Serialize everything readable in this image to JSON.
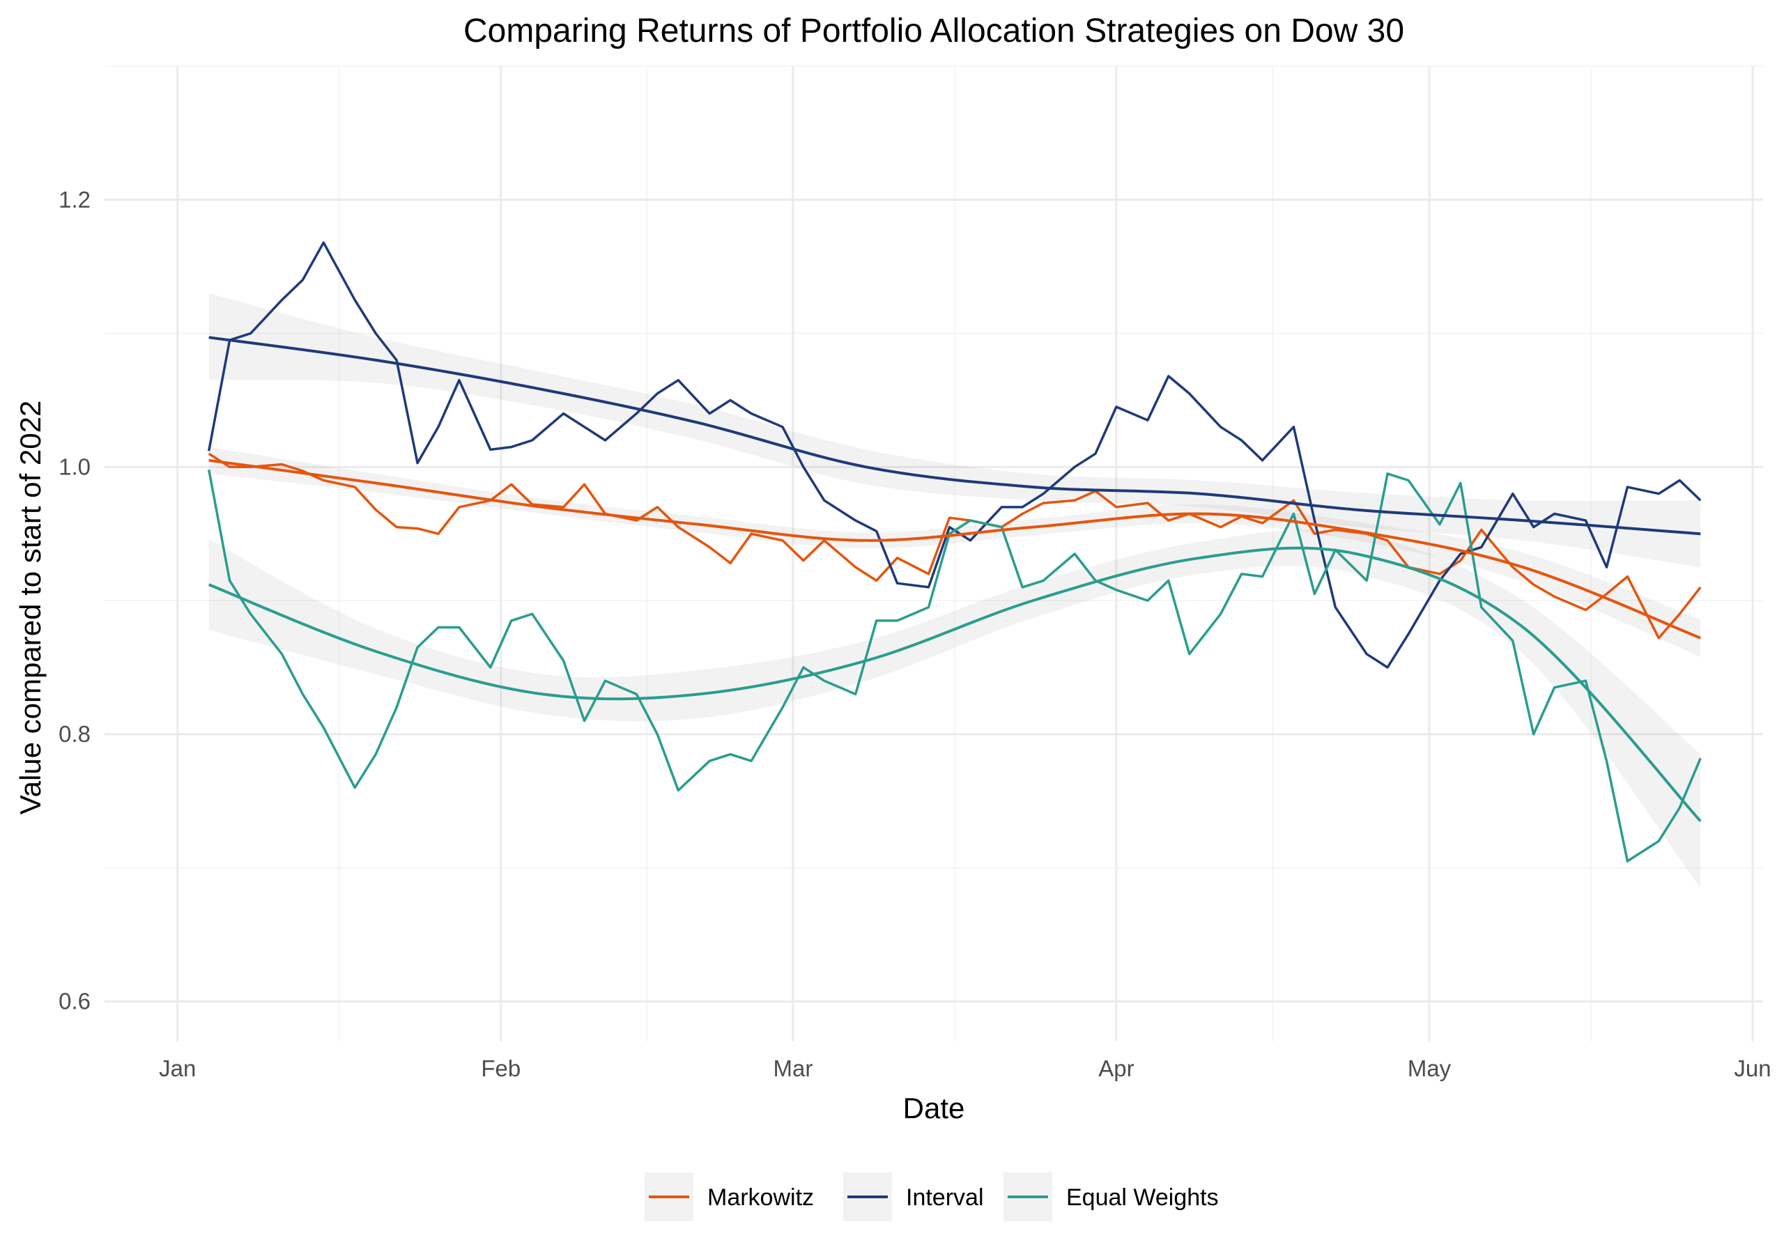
{
  "chart_data": {
    "type": "line",
    "title": "Comparing Returns of Portfolio Allocation Strategies on Dow 30",
    "xlabel": "Date",
    "ylabel": "Value compared to start of 2022",
    "x_axis_type": "date",
    "xlim": [
      "2021-12-25",
      "2022-06-02"
    ],
    "ylim": [
      0.57,
      1.3
    ],
    "x_ticks": [
      {
        "date": "2022-01-01",
        "label": "Jan"
      },
      {
        "date": "2022-02-01",
        "label": "Feb"
      },
      {
        "date": "2022-03-01",
        "label": "Mar"
      },
      {
        "date": "2022-04-01",
        "label": "Apr"
      },
      {
        "date": "2022-05-01",
        "label": "May"
      },
      {
        "date": "2022-06-01",
        "label": "Jun"
      }
    ],
    "y_ticks": [
      {
        "value": 0.6,
        "label": "0.6"
      },
      {
        "value": 0.8,
        "label": "0.8"
      },
      {
        "value": 1.0,
        "label": "1.0"
      },
      {
        "value": 1.2,
        "label": "1.2"
      }
    ],
    "grid": true,
    "legend_position": "bottom",
    "series": [
      {
        "name": "Markowitz",
        "color": "#E6550D",
        "x": [
          "2022-01-04",
          "2022-01-06",
          "2022-01-08",
          "2022-01-11",
          "2022-01-13",
          "2022-01-15",
          "2022-01-18",
          "2022-01-20",
          "2022-01-22",
          "2022-01-24",
          "2022-01-26",
          "2022-01-28",
          "2022-01-31",
          "2022-02-02",
          "2022-02-04",
          "2022-02-07",
          "2022-02-09",
          "2022-02-11",
          "2022-02-14",
          "2022-02-16",
          "2022-02-18",
          "2022-02-21",
          "2022-02-23",
          "2022-02-25",
          "2022-02-28",
          "2022-03-02",
          "2022-03-04",
          "2022-03-07",
          "2022-03-09",
          "2022-03-11",
          "2022-03-14",
          "2022-03-16",
          "2022-03-18",
          "2022-03-21",
          "2022-03-23",
          "2022-03-25",
          "2022-03-28",
          "2022-03-30",
          "2022-04-01",
          "2022-04-04",
          "2022-04-06",
          "2022-04-08",
          "2022-04-11",
          "2022-04-13",
          "2022-04-15",
          "2022-04-18",
          "2022-04-20",
          "2022-04-22",
          "2022-04-25",
          "2022-04-27",
          "2022-04-29",
          "2022-05-02",
          "2022-05-04",
          "2022-05-06",
          "2022-05-09",
          "2022-05-11",
          "2022-05-13",
          "2022-05-16",
          "2022-05-18",
          "2022-05-20",
          "2022-05-23",
          "2022-05-25",
          "2022-05-27"
        ],
        "values": [
          1.01,
          1.0,
          1.0,
          1.002,
          0.997,
          0.99,
          0.985,
          0.968,
          0.955,
          0.954,
          0.95,
          0.97,
          0.975,
          0.987,
          0.972,
          0.97,
          0.987,
          0.965,
          0.96,
          0.97,
          0.955,
          0.94,
          0.928,
          0.95,
          0.945,
          0.93,
          0.945,
          0.925,
          0.915,
          0.932,
          0.92,
          0.962,
          0.96,
          0.955,
          0.965,
          0.973,
          0.975,
          0.982,
          0.97,
          0.973,
          0.96,
          0.965,
          0.955,
          0.963,
          0.958,
          0.975,
          0.95,
          0.953,
          0.95,
          0.945,
          0.925,
          0.92,
          0.93,
          0.953,
          0.925,
          0.912,
          0.903,
          0.893,
          0.905,
          0.918,
          0.872,
          0.89,
          0.91
        ]
      },
      {
        "name": "Interval",
        "color": "#1F3A7A",
        "x": [
          "2022-01-04",
          "2022-01-06",
          "2022-01-08",
          "2022-01-11",
          "2022-01-13",
          "2022-01-15",
          "2022-01-18",
          "2022-01-20",
          "2022-01-22",
          "2022-01-24",
          "2022-01-26",
          "2022-01-28",
          "2022-01-31",
          "2022-02-02",
          "2022-02-04",
          "2022-02-07",
          "2022-02-09",
          "2022-02-11",
          "2022-02-14",
          "2022-02-16",
          "2022-02-18",
          "2022-02-21",
          "2022-02-23",
          "2022-02-25",
          "2022-02-28",
          "2022-03-02",
          "2022-03-04",
          "2022-03-07",
          "2022-03-09",
          "2022-03-11",
          "2022-03-14",
          "2022-03-16",
          "2022-03-18",
          "2022-03-21",
          "2022-03-23",
          "2022-03-25",
          "2022-03-28",
          "2022-03-30",
          "2022-04-01",
          "2022-04-04",
          "2022-04-06",
          "2022-04-08",
          "2022-04-11",
          "2022-04-13",
          "2022-04-15",
          "2022-04-18",
          "2022-04-20",
          "2022-04-22",
          "2022-04-25",
          "2022-04-27",
          "2022-04-29",
          "2022-05-02",
          "2022-05-04",
          "2022-05-06",
          "2022-05-09",
          "2022-05-11",
          "2022-05-13",
          "2022-05-16",
          "2022-05-18",
          "2022-05-20",
          "2022-05-23",
          "2022-05-25",
          "2022-05-27"
        ],
        "values": [
          1.012,
          1.095,
          1.1,
          1.125,
          1.14,
          1.168,
          1.125,
          1.1,
          1.08,
          1.003,
          1.03,
          1.065,
          1.013,
          1.015,
          1.02,
          1.04,
          1.03,
          1.02,
          1.04,
          1.055,
          1.065,
          1.04,
          1.05,
          1.04,
          1.03,
          1.0,
          0.975,
          0.96,
          0.952,
          0.913,
          0.91,
          0.955,
          0.945,
          0.97,
          0.97,
          0.98,
          1.0,
          1.01,
          1.045,
          1.035,
          1.068,
          1.055,
          1.03,
          1.02,
          1.005,
          1.03,
          0.96,
          0.895,
          0.86,
          0.85,
          0.875,
          0.915,
          0.935,
          0.94,
          0.98,
          0.955,
          0.965,
          0.96,
          0.925,
          0.985,
          0.98,
          0.99,
          0.975
        ]
      },
      {
        "name": "Equal Weights",
        "color": "#2A9D8F",
        "x": [
          "2022-01-04",
          "2022-01-06",
          "2022-01-08",
          "2022-01-11",
          "2022-01-13",
          "2022-01-15",
          "2022-01-18",
          "2022-01-20",
          "2022-01-22",
          "2022-01-24",
          "2022-01-26",
          "2022-01-28",
          "2022-01-31",
          "2022-02-02",
          "2022-02-04",
          "2022-02-07",
          "2022-02-09",
          "2022-02-11",
          "2022-02-14",
          "2022-02-16",
          "2022-02-18",
          "2022-02-21",
          "2022-02-23",
          "2022-02-25",
          "2022-02-28",
          "2022-03-02",
          "2022-03-04",
          "2022-03-07",
          "2022-03-09",
          "2022-03-11",
          "2022-03-14",
          "2022-03-16",
          "2022-03-18",
          "2022-03-21",
          "2022-03-23",
          "2022-03-25",
          "2022-03-28",
          "2022-03-30",
          "2022-04-01",
          "2022-04-04",
          "2022-04-06",
          "2022-04-08",
          "2022-04-11",
          "2022-04-13",
          "2022-04-15",
          "2022-04-18",
          "2022-04-20",
          "2022-04-22",
          "2022-04-25",
          "2022-04-27",
          "2022-04-29",
          "2022-05-02",
          "2022-05-04",
          "2022-05-06",
          "2022-05-09",
          "2022-05-11",
          "2022-05-13",
          "2022-05-16",
          "2022-05-18",
          "2022-05-20",
          "2022-05-23",
          "2022-05-25",
          "2022-05-27"
        ],
        "values": [
          0.998,
          0.915,
          0.89,
          0.86,
          0.83,
          0.805,
          0.76,
          0.785,
          0.82,
          0.865,
          0.88,
          0.88,
          0.85,
          0.885,
          0.89,
          0.855,
          0.81,
          0.84,
          0.83,
          0.8,
          0.758,
          0.78,
          0.785,
          0.78,
          0.82,
          0.85,
          0.84,
          0.83,
          0.885,
          0.885,
          0.895,
          0.95,
          0.96,
          0.955,
          0.91,
          0.915,
          0.935,
          0.915,
          0.908,
          0.9,
          0.915,
          0.86,
          0.89,
          0.92,
          0.918,
          0.965,
          0.905,
          0.938,
          0.915,
          0.995,
          0.99,
          0.957,
          0.988,
          0.895,
          0.87,
          0.8,
          0.835,
          0.84,
          0.78,
          0.705,
          0.72,
          0.745,
          0.782
        ]
      }
    ],
    "trend_lines": [
      {
        "series": "Markowitz",
        "method": "linear",
        "x": [
          "2022-01-04",
          "2022-01-20",
          "2022-02-05",
          "2022-02-20",
          "2022-03-08",
          "2022-03-24",
          "2022-04-09",
          "2022-04-24",
          "2022-05-10",
          "2022-05-27"
        ],
        "values": [
          1.005,
          0.988,
          0.97,
          0.957,
          0.945,
          0.955,
          0.965,
          0.952,
          0.925,
          0.872
        ],
        "band_lower": [
          0.995,
          0.981,
          0.965,
          0.951,
          0.939,
          0.949,
          0.958,
          0.945,
          0.914,
          0.858
        ],
        "band_upper": [
          1.015,
          0.995,
          0.976,
          0.963,
          0.951,
          0.961,
          0.972,
          0.959,
          0.936,
          0.886
        ]
      },
      {
        "series": "Interval",
        "method": "linear",
        "x": [
          "2022-01-04",
          "2022-01-20",
          "2022-02-05",
          "2022-02-20",
          "2022-03-08",
          "2022-03-24",
          "2022-04-09",
          "2022-04-24",
          "2022-05-10",
          "2022-05-27"
        ],
        "values": [
          1.097,
          1.08,
          1.058,
          1.033,
          1.0,
          0.985,
          0.98,
          0.968,
          0.96,
          0.95
        ],
        "band_lower": [
          1.065,
          1.063,
          1.045,
          1.02,
          0.987,
          0.975,
          0.97,
          0.955,
          0.945,
          0.925
        ],
        "band_upper": [
          1.13,
          1.097,
          1.071,
          1.046,
          1.013,
          0.995,
          0.99,
          0.981,
          0.975,
          0.975
        ]
      },
      {
        "series": "Equal Weights",
        "method": "loess",
        "x": [
          "2022-01-04",
          "2022-01-20",
          "2022-02-05",
          "2022-02-20",
          "2022-03-08",
          "2022-03-24",
          "2022-04-09",
          "2022-04-24",
          "2022-05-10",
          "2022-05-27"
        ],
        "values": [
          0.912,
          0.862,
          0.83,
          0.83,
          0.855,
          0.9,
          0.932,
          0.935,
          0.88,
          0.735
        ],
        "band_lower": [
          0.878,
          0.845,
          0.815,
          0.812,
          0.84,
          0.887,
          0.92,
          0.92,
          0.86,
          0.685
        ],
        "band_upper": [
          0.946,
          0.879,
          0.845,
          0.848,
          0.87,
          0.913,
          0.944,
          0.95,
          0.9,
          0.785
        ]
      }
    ]
  }
}
